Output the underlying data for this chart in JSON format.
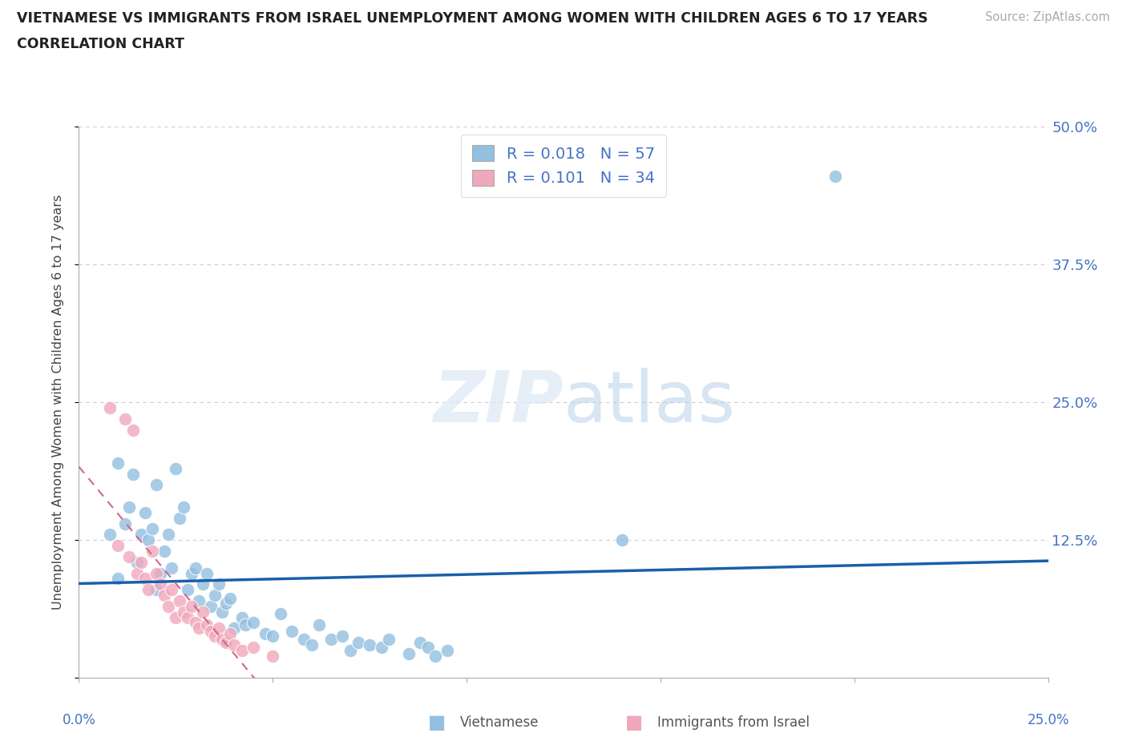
{
  "title_line1": "VIETNAMESE VS IMMIGRANTS FROM ISRAEL UNEMPLOYMENT AMONG WOMEN WITH CHILDREN AGES 6 TO 17 YEARS",
  "title_line2": "CORRELATION CHART",
  "source": "Source: ZipAtlas.com",
  "ylabel": "Unemployment Among Women with Children Ages 6 to 17 years",
  "xmin": 0.0,
  "xmax": 0.25,
  "ymin": 0.0,
  "ymax": 0.5,
  "viet_color": "#93bfe0",
  "israel_color": "#f0a8bc",
  "viet_line_color": "#1a5fa8",
  "israel_line_color": "#d06888",
  "legend_label_viet": "R = 0.018   N = 57",
  "legend_label_israel": "R = 0.101   N = 34",
  "bottom_label_viet": "Vietnamese",
  "bottom_label_israel": "Immigrants from Israel",
  "viet_x": [
    0.008,
    0.01,
    0.01,
    0.012,
    0.013,
    0.014,
    0.015,
    0.016,
    0.017,
    0.018,
    0.019,
    0.02,
    0.02,
    0.021,
    0.022,
    0.023,
    0.024,
    0.025,
    0.026,
    0.027,
    0.028,
    0.029,
    0.03,
    0.031,
    0.032,
    0.033,
    0.034,
    0.035,
    0.036,
    0.037,
    0.038,
    0.039,
    0.04,
    0.042,
    0.043,
    0.045,
    0.048,
    0.05,
    0.052,
    0.055,
    0.058,
    0.06,
    0.062,
    0.065,
    0.068,
    0.07,
    0.072,
    0.075,
    0.078,
    0.08,
    0.085,
    0.088,
    0.09,
    0.092,
    0.095,
    0.14,
    0.195
  ],
  "viet_y": [
    0.13,
    0.09,
    0.195,
    0.14,
    0.155,
    0.185,
    0.105,
    0.13,
    0.15,
    0.125,
    0.135,
    0.08,
    0.175,
    0.095,
    0.115,
    0.13,
    0.1,
    0.19,
    0.145,
    0.155,
    0.08,
    0.095,
    0.1,
    0.07,
    0.085,
    0.095,
    0.065,
    0.075,
    0.085,
    0.06,
    0.068,
    0.072,
    0.045,
    0.055,
    0.048,
    0.05,
    0.04,
    0.038,
    0.058,
    0.042,
    0.035,
    0.03,
    0.048,
    0.035,
    0.038,
    0.025,
    0.032,
    0.03,
    0.028,
    0.035,
    0.022,
    0.032,
    0.028,
    0.02,
    0.025,
    0.125,
    0.455
  ],
  "israel_x": [
    0.008,
    0.01,
    0.012,
    0.013,
    0.014,
    0.015,
    0.016,
    0.017,
    0.018,
    0.019,
    0.02,
    0.021,
    0.022,
    0.023,
    0.024,
    0.025,
    0.026,
    0.027,
    0.028,
    0.029,
    0.03,
    0.031,
    0.032,
    0.033,
    0.034,
    0.035,
    0.036,
    0.037,
    0.038,
    0.039,
    0.04,
    0.042,
    0.045,
    0.05
  ],
  "israel_y": [
    0.245,
    0.12,
    0.235,
    0.11,
    0.225,
    0.095,
    0.105,
    0.09,
    0.08,
    0.115,
    0.095,
    0.085,
    0.075,
    0.065,
    0.08,
    0.055,
    0.07,
    0.06,
    0.055,
    0.065,
    0.05,
    0.045,
    0.06,
    0.048,
    0.042,
    0.038,
    0.045,
    0.035,
    0.032,
    0.04,
    0.03,
    0.025,
    0.028,
    0.02
  ]
}
